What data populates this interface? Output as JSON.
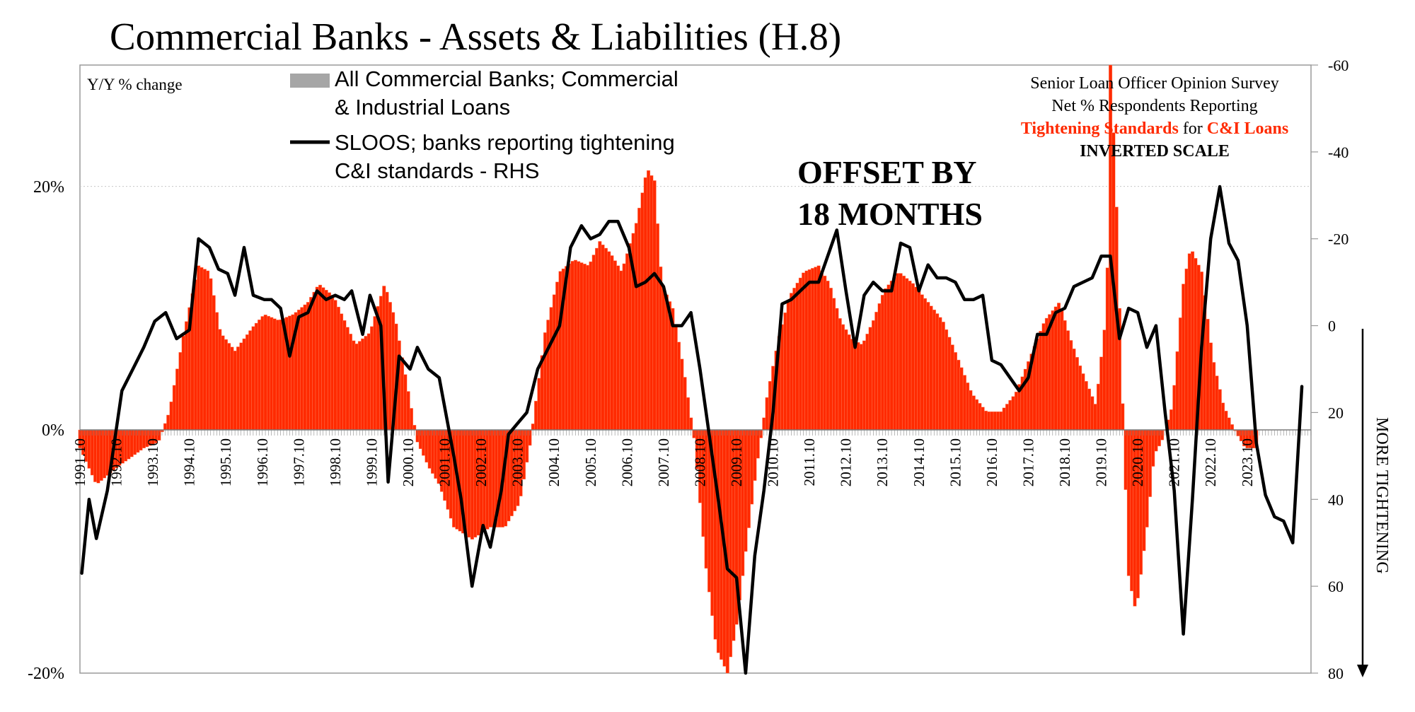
{
  "chart_data": {
    "type": "bar",
    "title": "Commercial Banks - Assets & Liabilities (H.8)",
    "ylabel": "Y/Y % change",
    "ylim": [
      -20,
      30
    ],
    "y_ticks": [
      {
        "value": 20,
        "label": "20%"
      },
      {
        "value": 0,
        "label": "0%"
      },
      {
        "value": -20,
        "label": "-20%"
      }
    ],
    "y2lim": [
      -60,
      80
    ],
    "y2_inverted": true,
    "y2_ticks": [
      "-60",
      "-40",
      "-20",
      "0",
      "20",
      "40",
      "60",
      "80"
    ],
    "y2_ticks_values": [
      -60,
      -40,
      -20,
      0,
      20,
      40,
      60,
      80
    ],
    "y2_label": "MORE TIGHTENING",
    "xlim": [
      1991.75,
      2025.5
    ],
    "x_ticks": [
      "1991.10",
      "1992.10",
      "1993.10",
      "1994.10",
      "1995.10",
      "1996.10",
      "1997.10",
      "1998.10",
      "1999.10",
      "2000.10",
      "2001.10",
      "2002.10",
      "2003.10",
      "2004.10",
      "2005.10",
      "2006.10",
      "2007.10",
      "2008.10",
      "2009.10",
      "2010.10",
      "2011.10",
      "2012.10",
      "2013.10",
      "2014.10",
      "2015.10",
      "2016.10",
      "2017.10",
      "2018.10",
      "2019.10",
      "2020.10",
      "2021.10",
      "2022.10",
      "2023.10"
    ],
    "legend": {
      "series1": "All Commercial Banks; Commercial & Industrial Loans",
      "series1_line1": "All Commercial Banks; Commercial",
      "series1_line2": "& Industrial Loans",
      "series2": "SLOOS; banks reporting tightening C&I standards - RHS",
      "series2_line1": "SLOOS; banks reporting tightening",
      "series2_line2": "C&I standards - RHS",
      "position": "top-left"
    },
    "annotations": {
      "offset_line1": "OFFSET BY",
      "offset_line2": "18 MONTHS",
      "survey_line1": "Senior Loan Officer Opinion Survey",
      "survey_line2": "Net % Respondents Reporting",
      "survey_red1": "Tightening Standards",
      "survey_for": " for ",
      "survey_red2": "C&I Loans",
      "survey_line4": "INVERTED SCALE"
    },
    "series": [
      {
        "name": "All Commercial Banks; Commercial & Industrial Loans",
        "axis": "left",
        "color": "#ff2a00",
        "x": [
          1991.75,
          1992.2,
          1992.8,
          1993.5,
          1993.9,
          1994.2,
          1994.6,
          1995.0,
          1995.3,
          1995.6,
          1996.0,
          1996.5,
          1996.8,
          1997.2,
          1997.6,
          1998.0,
          1998.3,
          1998.7,
          1999.0,
          1999.3,
          1999.7,
          2000.1,
          2000.4,
          2000.7,
          2001.0,
          2001.3,
          2001.6,
          2002.0,
          2002.5,
          2003.0,
          2003.4,
          2003.8,
          2004.1,
          2004.5,
          2004.9,
          2005.3,
          2005.7,
          2006.0,
          2006.3,
          2006.6,
          2007.0,
          2007.3,
          2007.5,
          2007.7,
          2008.0,
          2008.3,
          2008.6,
          2008.9,
          2009.2,
          2009.5,
          2009.75,
          2010.0,
          2010.3,
          2010.6,
          2010.9,
          2011.2,
          2011.6,
          2012.0,
          2012.3,
          2012.6,
          2012.9,
          2013.2,
          2013.5,
          2013.8,
          2014.2,
          2014.6,
          2015.0,
          2015.4,
          2015.8,
          2016.2,
          2016.6,
          2017.0,
          2017.4,
          2017.8,
          2018.2,
          2018.6,
          2018.9,
          2019.2,
          2019.6,
          2019.9,
          2020.0,
          2020.15,
          2020.3,
          2020.5,
          2020.7,
          2021.0,
          2021.2,
          2021.4,
          2021.7,
          2022.0,
          2022.2,
          2022.5,
          2022.8,
          2023.1,
          2023.4,
          2023.7,
          2024.0
        ],
        "values": [
          -1.5,
          -4.5,
          -3,
          -1.5,
          -1,
          1.5,
          8,
          13.5,
          13,
          8,
          6.5,
          8.5,
          9.5,
          9,
          9.5,
          10.5,
          12,
          11,
          9,
          7,
          8,
          12,
          9,
          4,
          -1,
          -3,
          -4.5,
          -8,
          -9,
          -8,
          -8,
          -6,
          -1,
          8,
          13,
          14,
          13.5,
          15.5,
          14.5,
          13,
          17,
          21.5,
          20.5,
          12,
          10,
          5,
          -1,
          -11,
          -18,
          -20,
          -16,
          -10,
          -3,
          3,
          7.5,
          11,
          13,
          13.5,
          12,
          9,
          7.5,
          7,
          9,
          11.5,
          13,
          12,
          10.5,
          9,
          6,
          3,
          1.5,
          1.5,
          3,
          6,
          9,
          10.5,
          7.5,
          5,
          2,
          10,
          30,
          20,
          5,
          -12,
          -15,
          -8,
          -2,
          -1,
          2,
          12,
          15,
          13,
          6,
          2,
          0,
          -1.5,
          -1.5
        ]
      },
      {
        "name": "SLOOS; banks reporting tightening C&I standards - RHS",
        "axis": "right",
        "color": "#000000",
        "x": [
          1991.8,
          1992.0,
          1992.2,
          1992.5,
          1992.9,
          1993.2,
          1993.5,
          1993.8,
          1994.1,
          1994.4,
          1994.75,
          1995.0,
          1995.3,
          1995.55,
          1995.8,
          1996.0,
          1996.25,
          1996.5,
          1996.8,
          1997.0,
          1997.25,
          1997.5,
          1997.75,
          1998.0,
          1998.25,
          1998.5,
          1998.75,
          1999.0,
          1999.2,
          1999.5,
          1999.7,
          2000.0,
          2000.2,
          2000.5,
          2000.8,
          2001.0,
          2001.3,
          2001.6,
          2002.0,
          2002.2,
          2002.5,
          2002.8,
          2003.0,
          2003.3,
          2003.5,
          2003.8,
          2004.0,
          2004.3,
          2004.6,
          2004.9,
          2005.2,
          2005.5,
          2005.75,
          2006.0,
          2006.25,
          2006.5,
          2006.8,
          2007.0,
          2007.25,
          2007.5,
          2007.75,
          2008.0,
          2008.25,
          2008.5,
          2008.75,
          2009.0,
          2009.25,
          2009.5,
          2009.75,
          2010.0,
          2010.25,
          2010.5,
          2010.75,
          2011.0,
          2011.25,
          2011.5,
          2011.75,
          2012.0,
          2012.25,
          2012.5,
          2012.75,
          2013.0,
          2013.25,
          2013.5,
          2013.75,
          2014.0,
          2014.25,
          2014.5,
          2014.75,
          2015.0,
          2015.25,
          2015.5,
          2015.75,
          2016.0,
          2016.25,
          2016.5,
          2016.75,
          2017.0,
          2017.25,
          2017.5,
          2017.75,
          2018.0,
          2018.25,
          2018.5,
          2018.75,
          2019.0,
          2019.25,
          2019.5,
          2019.75,
          2020.0,
          2020.25,
          2020.5,
          2020.75,
          2021.0,
          2021.25,
          2021.5,
          2021.75,
          2022.0,
          2022.25,
          2022.5,
          2022.75,
          2023.0,
          2023.25,
          2023.5,
          2023.75,
          2024.0,
          2024.25,
          2024.5,
          2024.75,
          2025.0,
          2025.25
        ],
        "values": [
          57,
          40,
          49,
          38,
          15,
          10,
          5,
          -1,
          -3,
          3,
          1,
          -20,
          -18,
          -13,
          -12,
          -7,
          -18,
          -7,
          -6,
          -6,
          -4,
          7,
          -2,
          -3,
          -8,
          -6,
          -7,
          -6,
          -8,
          2,
          -7,
          0,
          36,
          7,
          10,
          5,
          10,
          12,
          30,
          40,
          60,
          46,
          51,
          38,
          25,
          22,
          20,
          10,
          5,
          0,
          -18,
          -23,
          -20,
          -21,
          -24,
          -24,
          -18,
          -9,
          -10,
          -12,
          -9,
          0,
          0,
          -3,
          10,
          25,
          40,
          56,
          58,
          80,
          53,
          38,
          20,
          -5,
          -6,
          -8,
          -10,
          -10,
          -16,
          -22,
          -8,
          5,
          -7,
          -10,
          -8,
          -8,
          -19,
          -18,
          -8,
          -14,
          -11,
          -11,
          -10,
          -6,
          -6,
          -7,
          8,
          9,
          12,
          15,
          12,
          2,
          2,
          -3,
          -4,
          -9,
          -10,
          -11,
          -16,
          -16,
          3,
          -4,
          -3,
          5,
          0,
          20,
          38,
          71,
          40,
          5,
          -20,
          -32,
          -19,
          -15,
          0,
          27,
          39,
          44,
          45,
          50,
          14
        ]
      }
    ]
  }
}
